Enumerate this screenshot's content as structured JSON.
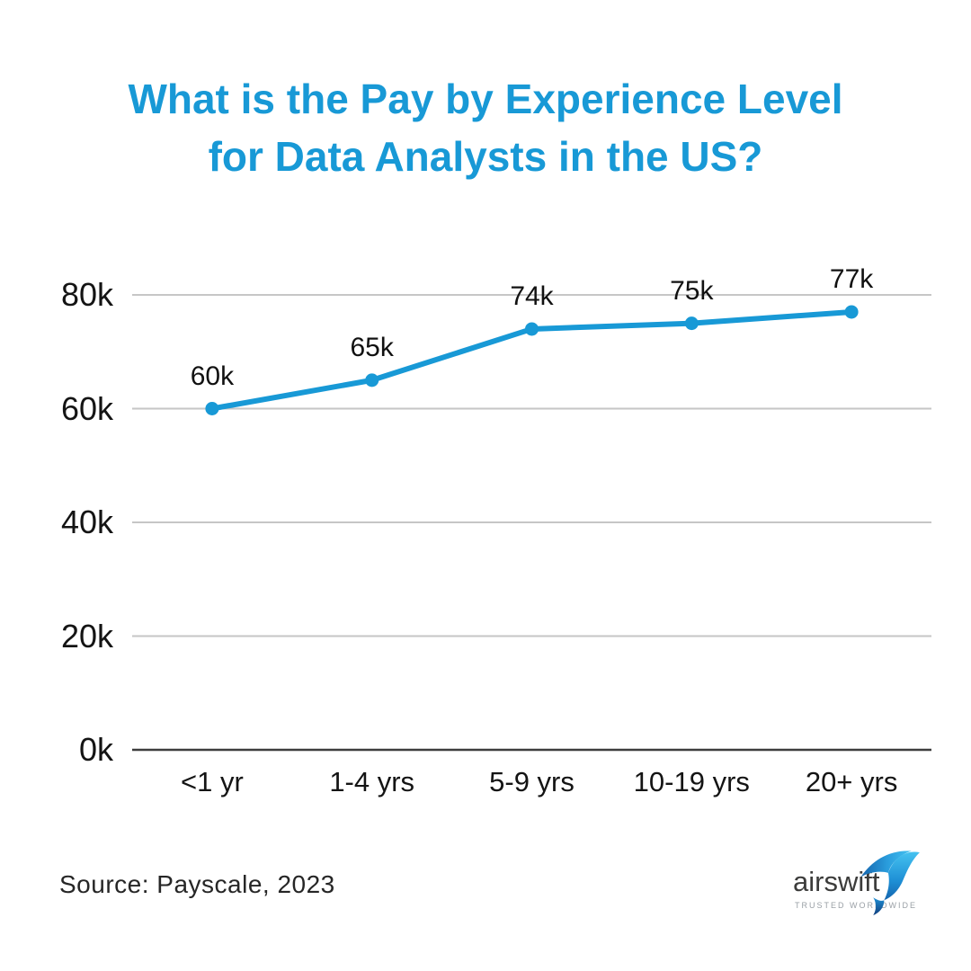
{
  "title": {
    "line1": "What is the Pay by Experience Level",
    "line2": "for Data Analysts in the US?"
  },
  "theme": {
    "accent_blue": "#1899D6",
    "grid_gray": "#c6c6c6",
    "axis_dark": "#3d3d3d",
    "label_dark": "#141414",
    "logo_text_gray": "#3C3C3B"
  },
  "chart_data": {
    "type": "line",
    "title": "What is the Pay by Experience Level for Data Analysts in the US?",
    "categories": [
      "<1 yr",
      "1-4 yrs",
      "5-9 yrs",
      "10-19 yrs",
      "20+ yrs"
    ],
    "values": [
      60,
      65,
      74,
      75,
      77
    ],
    "point_labels": [
      "60k",
      "65k",
      "74k",
      "75k",
      "77k"
    ],
    "unit": "thousand USD per year",
    "xlabel": "",
    "ylabel": "",
    "ylim": [
      0,
      80
    ],
    "yticks": [
      {
        "value": 0,
        "label": "0k"
      },
      {
        "value": 20,
        "label": "20k"
      },
      {
        "value": 40,
        "label": "40k"
      },
      {
        "value": 60,
        "label": "60k"
      },
      {
        "value": 80,
        "label": "80k"
      }
    ],
    "grid": "horizontal",
    "legend": "none",
    "line_color": "#1899D6",
    "grid_color": "#c6c6c6",
    "axis_color": "#3d3d3d"
  },
  "footer": {
    "source": "Source: Payscale, 2023",
    "logo": {
      "name": "airswift",
      "tagline": "TRUSTED WORLDWIDE",
      "icon": "swift-bird-icon"
    }
  }
}
